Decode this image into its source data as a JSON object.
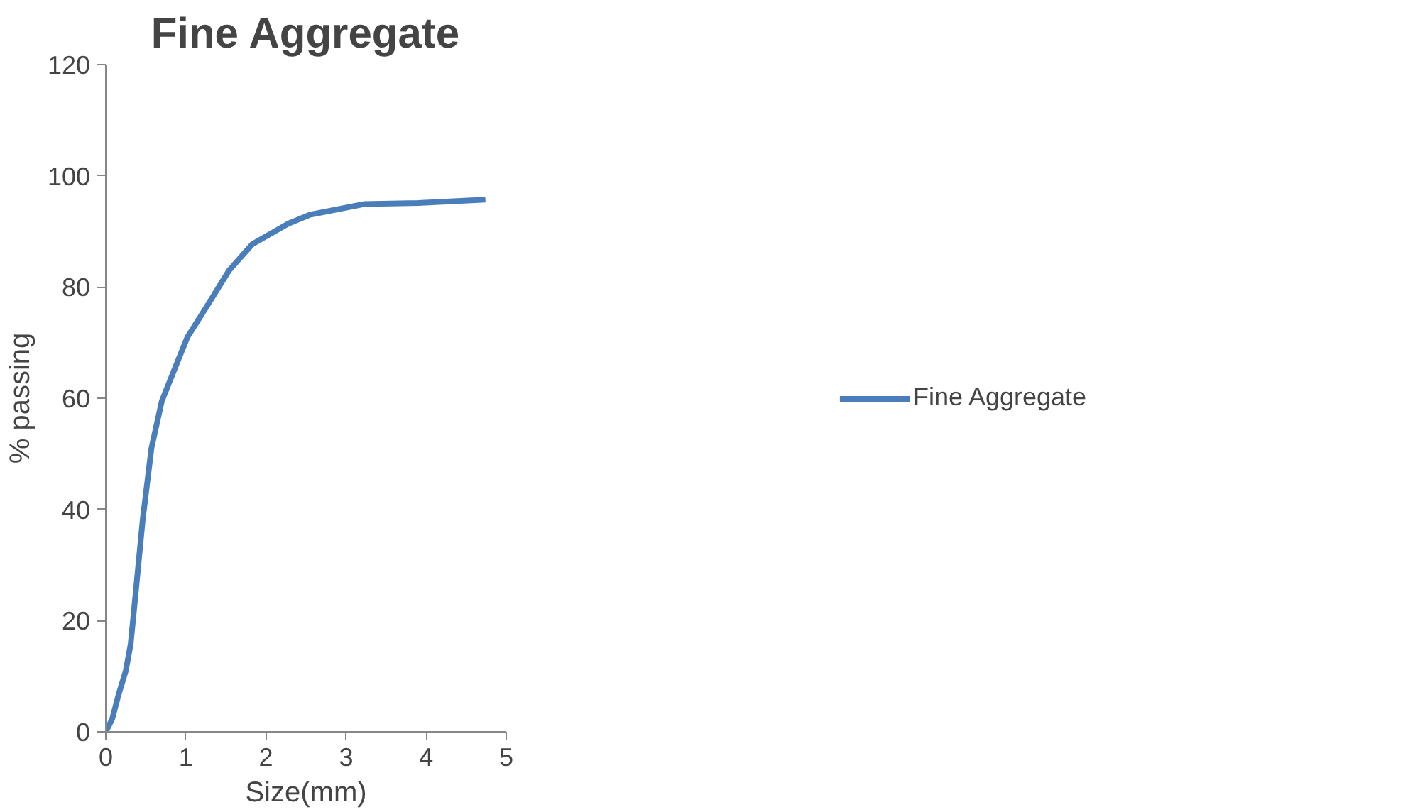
{
  "chart_data": {
    "type": "line",
    "title": "Fine Aggregate",
    "xlabel": "Size(mm)",
    "ylabel": "% passing",
    "x": [
      0,
      0.08,
      0.16,
      0.25,
      0.31,
      0.38,
      0.46,
      0.57,
      0.7,
      0.88,
      1.02,
      1.27,
      1.54,
      1.83,
      2.28,
      2.55,
      3.22,
      3.9,
      4.74
    ],
    "series": [
      {
        "name": "Fine Aggregate",
        "color": "#4a7ebb",
        "values": [
          0,
          2.3,
          6.7,
          11,
          15.7,
          26,
          38,
          51,
          59.5,
          66,
          71,
          76.7,
          83,
          87.7,
          91.4,
          93,
          94.9,
          95.1,
          95.7
        ]
      }
    ],
    "xlim": [
      0,
      5
    ],
    "xticks": [
      0,
      1,
      2,
      3,
      4,
      5
    ],
    "ylim": [
      0,
      120
    ],
    "yticks": [
      0,
      20,
      40,
      60,
      80,
      100,
      120
    ],
    "grid": false,
    "legend": "right",
    "marker": "none",
    "line_style": "solid"
  }
}
